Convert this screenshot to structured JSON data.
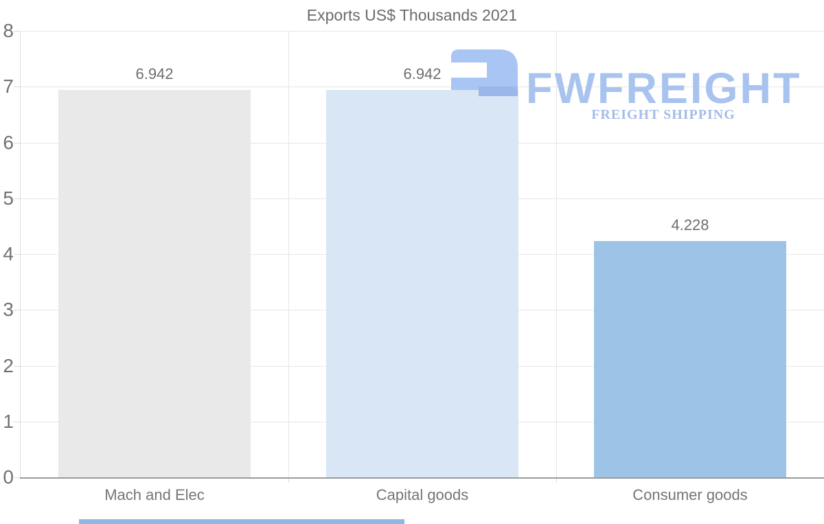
{
  "chart_data": {
    "type": "bar",
    "title": "Exports US$ Thousands 2021",
    "categories": [
      "Mach and Elec",
      "Capital goods",
      "Consumer goods"
    ],
    "values": [
      6.942,
      6.942,
      4.228
    ],
    "value_labels": [
      "6.942",
      "6.942",
      "4.228"
    ],
    "bar_colors": [
      "#e9e9e9",
      "#d8e6f6",
      "#9dc3e6"
    ],
    "xlabel": "",
    "ylabel": "",
    "ylim": [
      0,
      8
    ],
    "ytick_labels": [
      "0",
      "1",
      "2",
      "3",
      "4",
      "5",
      "6",
      "7",
      "8"
    ],
    "grid": {
      "horizontal": true,
      "vertical_category_separators": true
    },
    "legend": "none"
  },
  "watermark": {
    "brand": "FWFREIGHT",
    "tagline": "FREIGHT SHIPPING",
    "brand_color": "#a9c3ef",
    "tagline_color": "#a3bce8",
    "icon_body_color": "#a9c5f3",
    "icon_accent_color": "#9bb7e9",
    "icon_name": "fwfreight-logo-icon"
  },
  "scrollbar": {
    "color": "#8eb8e0"
  },
  "colors": {
    "background": "#ffffff",
    "grid_line": "#e7e7e7",
    "axis_line": "#dcdcdc",
    "baseline": "#9a9a9a",
    "text_gray": "#6e6e6e"
  }
}
